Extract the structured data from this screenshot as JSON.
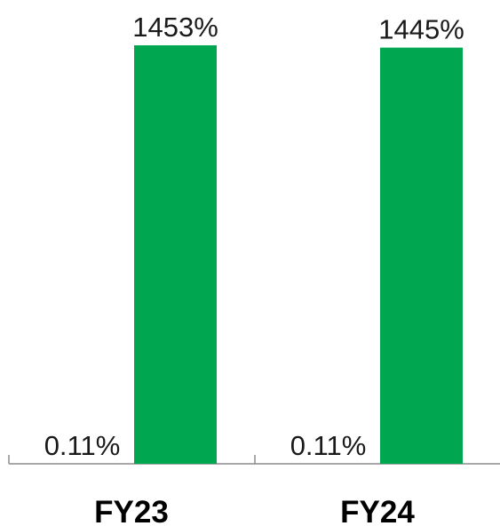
{
  "colors": {
    "bar_green": "#00a650",
    "axis": "#8c8c8c",
    "text": "#1a1a1a"
  },
  "chart_data": {
    "type": "bar",
    "categories": [
      "FY23",
      "FY24"
    ],
    "series": [
      {
        "values": [
          0.11,
          0.11
        ],
        "value_labels": [
          "0.11%",
          "0.11%"
        ],
        "color": "#00a650"
      },
      {
        "values": [
          1453,
          1445
        ],
        "value_labels": [
          "1453%",
          "1445%"
        ],
        "color": "#00a650"
      }
    ],
    "title": "",
    "xlabel": "",
    "ylabel": "",
    "ylim": [
      0,
      1453
    ],
    "grid": false,
    "legend": "none"
  }
}
